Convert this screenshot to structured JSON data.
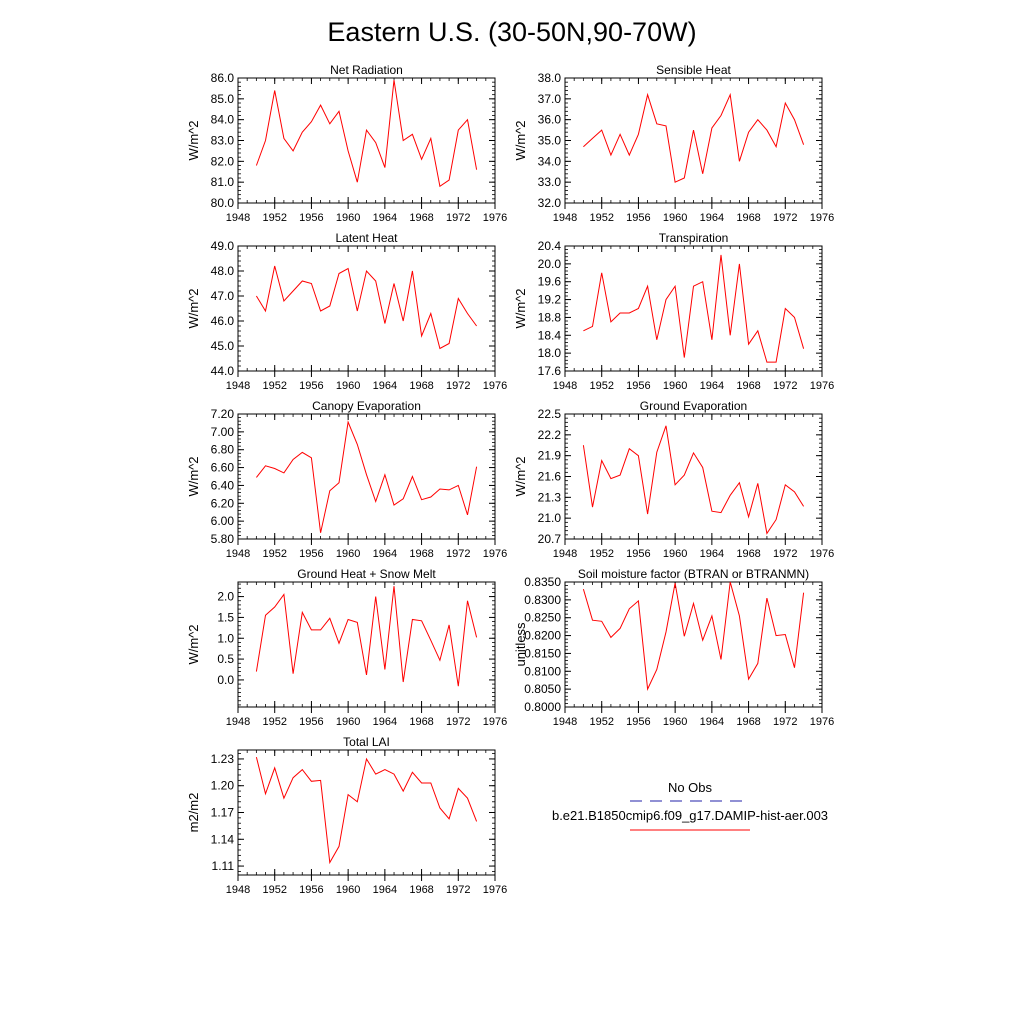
{
  "title": "Eastern U.S. (30-50N,90-70W)",
  "legend": {
    "obs_label": "No Obs",
    "obs_color": "#2222aa",
    "model_label": "b.e21.B1850cmip6.f09_g17.DAMIP-hist-aer.003",
    "model_color": "#ff0000"
  },
  "x_ticks": [
    "1948",
    "1952",
    "1956",
    "1960",
    "1964",
    "1968",
    "1972",
    "1976"
  ],
  "chart_data": [
    {
      "type": "line",
      "title": "Net Radiation",
      "ylabel": "W/m^2",
      "xlim": [
        1948,
        1976
      ],
      "ylim": [
        80.0,
        86.0
      ],
      "y_ticks": [
        "80.0",
        "81.0",
        "82.0",
        "83.0",
        "84.0",
        "85.0",
        "86.0"
      ],
      "y_minor_step": 0.2,
      "x": [
        1950,
        1951,
        1952,
        1953,
        1954,
        1955,
        1956,
        1957,
        1958,
        1959,
        1960,
        1961,
        1962,
        1963,
        1964,
        1965,
        1966,
        1967,
        1968,
        1969,
        1970,
        1971,
        1972,
        1973,
        1974
      ],
      "series": [
        {
          "values": [
            81.8,
            83.0,
            85.4,
            83.1,
            82.5,
            83.4,
            83.9,
            84.7,
            83.8,
            84.4,
            82.5,
            81.0,
            83.5,
            82.9,
            81.7,
            85.9,
            83.0,
            83.3,
            82.1,
            83.1,
            80.8,
            81.1,
            83.5,
            84.0,
            81.6
          ]
        }
      ]
    },
    {
      "type": "line",
      "title": "Sensible Heat",
      "ylabel": "W/m^2",
      "xlim": [
        1948,
        1976
      ],
      "ylim": [
        32.0,
        38.0
      ],
      "y_ticks": [
        "32.0",
        "33.0",
        "34.0",
        "35.0",
        "36.0",
        "37.0",
        "38.0"
      ],
      "y_minor_step": 0.2,
      "x": [
        1950,
        1951,
        1952,
        1953,
        1954,
        1955,
        1956,
        1957,
        1958,
        1959,
        1960,
        1961,
        1962,
        1963,
        1964,
        1965,
        1966,
        1967,
        1968,
        1969,
        1970,
        1971,
        1972,
        1973,
        1974
      ],
      "series": [
        {
          "values": [
            34.7,
            35.1,
            35.5,
            34.3,
            35.3,
            34.3,
            35.3,
            37.2,
            35.8,
            35.7,
            33.0,
            33.2,
            35.5,
            33.4,
            35.6,
            36.2,
            37.2,
            34.0,
            35.4,
            36.0,
            35.5,
            34.7,
            36.8,
            36.0,
            34.8
          ]
        }
      ]
    },
    {
      "type": "line",
      "title": "Latent Heat",
      "ylabel": "W/m^2",
      "xlim": [
        1948,
        1976
      ],
      "ylim": [
        44.0,
        49.0
      ],
      "y_ticks": [
        "44.0",
        "45.0",
        "46.0",
        "47.0",
        "48.0",
        "49.0"
      ],
      "y_minor_step": 0.2,
      "x": [
        1950,
        1951,
        1952,
        1953,
        1954,
        1955,
        1956,
        1957,
        1958,
        1959,
        1960,
        1961,
        1962,
        1963,
        1964,
        1965,
        1966,
        1967,
        1968,
        1969,
        1970,
        1971,
        1972,
        1973,
        1974
      ],
      "series": [
        {
          "values": [
            47.0,
            46.4,
            48.2,
            46.8,
            47.2,
            47.6,
            47.5,
            46.4,
            46.6,
            47.9,
            48.1,
            46.4,
            48.0,
            47.6,
            45.9,
            47.5,
            46.0,
            48.0,
            45.4,
            46.3,
            44.9,
            45.1,
            46.9,
            46.3,
            45.8
          ]
        }
      ]
    },
    {
      "type": "line",
      "title": "Transpiration",
      "ylabel": "W/m^2",
      "xlim": [
        1948,
        1976
      ],
      "ylim": [
        17.6,
        20.4
      ],
      "y_ticks": [
        "17.6",
        "18.0",
        "18.4",
        "18.8",
        "19.2",
        "19.6",
        "20.0",
        "20.4"
      ],
      "y_minor_step": 0.08,
      "x": [
        1950,
        1951,
        1952,
        1953,
        1954,
        1955,
        1956,
        1957,
        1958,
        1959,
        1960,
        1961,
        1962,
        1963,
        1964,
        1965,
        1966,
        1967,
        1968,
        1969,
        1970,
        1971,
        1972,
        1973,
        1974
      ],
      "series": [
        {
          "values": [
            18.5,
            18.6,
            19.8,
            18.7,
            18.9,
            18.9,
            19.0,
            19.5,
            18.3,
            19.2,
            19.5,
            17.9,
            19.5,
            19.6,
            18.3,
            20.2,
            18.4,
            20.0,
            18.2,
            18.5,
            17.8,
            17.8,
            19.0,
            18.8,
            18.1
          ]
        }
      ]
    },
    {
      "type": "line",
      "title": "Canopy Evaporation",
      "ylabel": "W/m^2",
      "xlim": [
        1948,
        1976
      ],
      "ylim": [
        5.8,
        7.2
      ],
      "y_ticks": [
        "5.80",
        "6.00",
        "6.20",
        "6.40",
        "6.60",
        "6.80",
        "7.00",
        "7.20"
      ],
      "y_minor_step": 0.04,
      "x": [
        1950,
        1951,
        1952,
        1953,
        1954,
        1955,
        1956,
        1957,
        1958,
        1959,
        1960,
        1961,
        1962,
        1963,
        1964,
        1965,
        1966,
        1967,
        1968,
        1969,
        1970,
        1971,
        1972,
        1973,
        1974
      ],
      "series": [
        {
          "values": [
            6.49,
            6.62,
            6.59,
            6.54,
            6.69,
            6.77,
            6.71,
            5.87,
            6.34,
            6.43,
            7.11,
            6.86,
            6.52,
            6.22,
            6.52,
            6.18,
            6.25,
            6.5,
            6.24,
            6.27,
            6.36,
            6.35,
            6.4,
            6.07,
            6.61
          ]
        }
      ]
    },
    {
      "type": "line",
      "title": "Ground Evaporation",
      "ylabel": "W/m^2",
      "xlim": [
        1948,
        1976
      ],
      "ylim": [
        20.7,
        22.5
      ],
      "y_ticks": [
        "20.7",
        "21.0",
        "21.3",
        "21.6",
        "21.9",
        "22.2",
        "22.5"
      ],
      "y_minor_step": 0.06,
      "x": [
        1950,
        1951,
        1952,
        1953,
        1954,
        1955,
        1956,
        1957,
        1958,
        1959,
        1960,
        1961,
        1962,
        1963,
        1964,
        1965,
        1966,
        1967,
        1968,
        1969,
        1970,
        1971,
        1972,
        1973,
        1974
      ],
      "series": [
        {
          "values": [
            22.05,
            21.16,
            21.83,
            21.57,
            21.62,
            22.0,
            21.9,
            21.06,
            21.95,
            22.33,
            21.48,
            21.62,
            21.94,
            21.73,
            21.1,
            21.08,
            21.33,
            21.51,
            21.02,
            21.5,
            20.78,
            20.98,
            21.48,
            21.38,
            21.17
          ]
        }
      ]
    },
    {
      "type": "line",
      "title": "Ground Heat + Snow Melt",
      "ylabel": "W/m^2",
      "xlim": [
        1948,
        1976
      ],
      "ylim": [
        -0.65,
        2.35
      ],
      "y_ticks": [
        "0.0",
        "0.5",
        "1.0",
        "1.5",
        "2.0"
      ],
      "y_tick_values": [
        0.0,
        0.5,
        1.0,
        1.5,
        2.0
      ],
      "y_minor_step": 0.1,
      "x": [
        1950,
        1951,
        1952,
        1953,
        1954,
        1955,
        1956,
        1957,
        1958,
        1959,
        1960,
        1961,
        1962,
        1963,
        1964,
        1965,
        1966,
        1967,
        1968,
        1969,
        1970,
        1971,
        1972,
        1973,
        1974
      ],
      "series": [
        {
          "values": [
            0.2,
            1.55,
            1.75,
            2.05,
            0.15,
            1.62,
            1.2,
            1.2,
            1.48,
            0.88,
            1.45,
            1.38,
            0.12,
            2.0,
            0.25,
            2.25,
            -0.05,
            1.45,
            1.42,
            0.95,
            0.47,
            1.32,
            -0.15,
            1.9,
            1.02
          ]
        }
      ]
    },
    {
      "type": "line",
      "title": "Soil moisture factor (BTRAN or BTRANMN)",
      "ylabel": "unitless",
      "xlim": [
        1948,
        1976
      ],
      "ylim": [
        0.8,
        0.835
      ],
      "y_ticks": [
        "0.8000",
        "0.8050",
        "0.8100",
        "0.8150",
        "0.8200",
        "0.8250",
        "0.8300",
        "0.8350"
      ],
      "y_minor_step": 0.001,
      "x": [
        1950,
        1951,
        1952,
        1953,
        1954,
        1955,
        1956,
        1957,
        1958,
        1959,
        1960,
        1961,
        1962,
        1963,
        1964,
        1965,
        1966,
        1967,
        1968,
        1969,
        1970,
        1971,
        1972,
        1973,
        1974
      ],
      "series": [
        {
          "values": [
            0.833,
            0.8243,
            0.824,
            0.8195,
            0.822,
            0.8275,
            0.8297,
            0.805,
            0.8105,
            0.821,
            0.8347,
            0.8198,
            0.829,
            0.8187,
            0.8255,
            0.8133,
            0.835,
            0.8255,
            0.8078,
            0.8122,
            0.8305,
            0.82,
            0.8203,
            0.811,
            0.832
          ]
        }
      ]
    },
    {
      "type": "line",
      "title": "Total LAI",
      "ylabel": "m2/m2",
      "xlim": [
        1948,
        1976
      ],
      "ylim": [
        1.1,
        1.24
      ],
      "y_ticks": [
        "1.11",
        "1.14",
        "1.17",
        "1.20",
        "1.23"
      ],
      "y_tick_values": [
        1.11,
        1.14,
        1.17,
        1.2,
        1.23
      ],
      "y_minor_step": 0.006,
      "x": [
        1950,
        1951,
        1952,
        1953,
        1954,
        1955,
        1956,
        1957,
        1958,
        1959,
        1960,
        1961,
        1962,
        1963,
        1964,
        1965,
        1966,
        1967,
        1968,
        1969,
        1970,
        1971,
        1972,
        1973,
        1974
      ],
      "series": [
        {
          "values": [
            1.232,
            1.191,
            1.22,
            1.186,
            1.209,
            1.218,
            1.205,
            1.206,
            1.114,
            1.132,
            1.19,
            1.182,
            1.23,
            1.213,
            1.218,
            1.213,
            1.194,
            1.215,
            1.203,
            1.203,
            1.175,
            1.163,
            1.197,
            1.186,
            1.16
          ]
        }
      ]
    }
  ]
}
